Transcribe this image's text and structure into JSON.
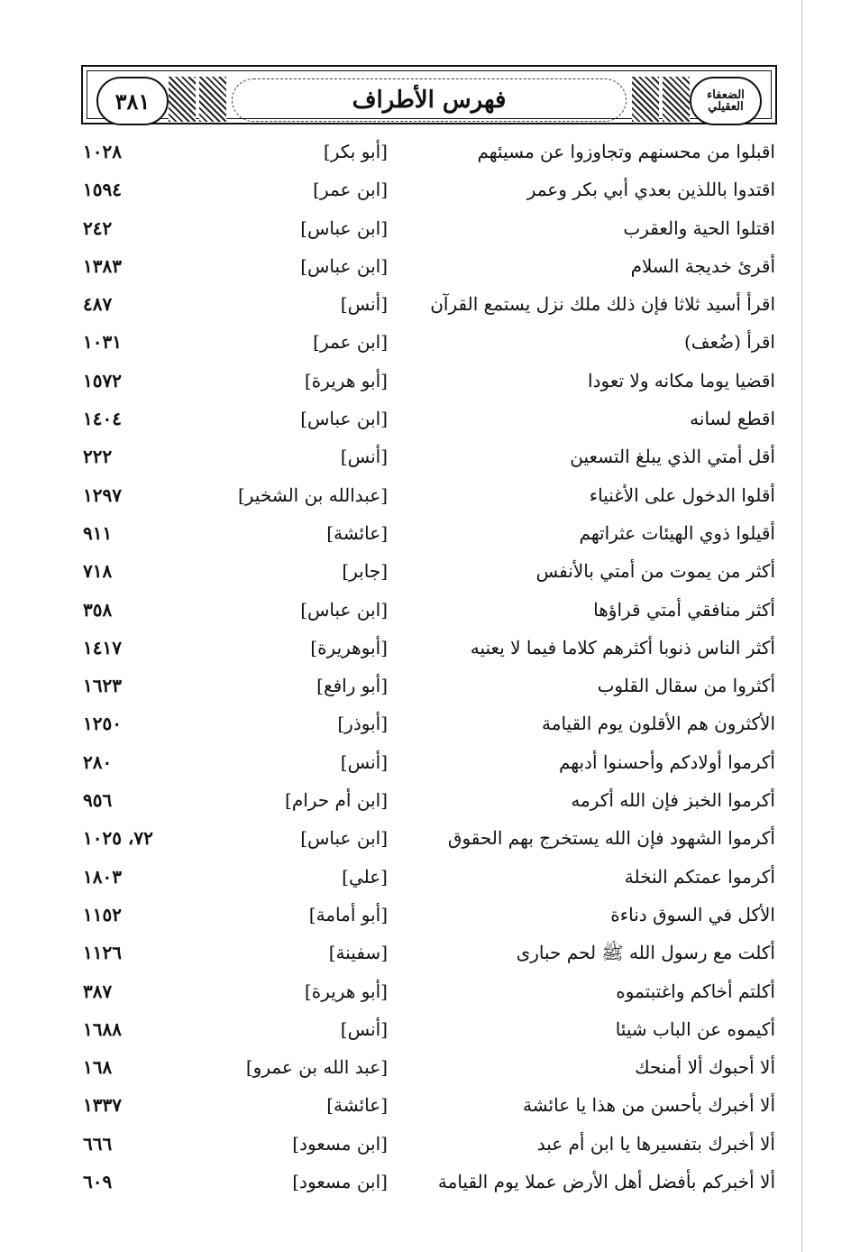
{
  "header": {
    "page_number": "٣٨١",
    "title": "فهرس الأطراف",
    "logo_text": "الضعفاء العقيلي"
  },
  "entries": [
    {
      "text": "اقبلوا من محسنهم وتجاوزوا عن مسيئهم",
      "narrator": "[أبو بكر]",
      "ref": "١٠٢٨"
    },
    {
      "text": "اقتدوا باللذين بعدي أبي بكر وعمر",
      "narrator": "[ابن عمر]",
      "ref": "١٥٩٤"
    },
    {
      "text": "اقتلوا الحية والعقرب",
      "narrator": "[ابن عباس]",
      "ref": "٢٤٢"
    },
    {
      "text": "أقرئ خديجة السلام",
      "narrator": "[ابن عباس]",
      "ref": "١٣٨٣"
    },
    {
      "text": "اقرأ أسيد ثلاثا فإن ذلك ملك نزل يستمع القرآن",
      "narrator": "[أنس]",
      "ref": "٤٨٧"
    },
    {
      "text": "اقرأ (ضُعف)",
      "narrator": "[ابن عمر]",
      "ref": "١٠٣١"
    },
    {
      "text": "اقضيا يوما مكانه ولا تعودا",
      "narrator": "[أبو هريرة]",
      "ref": "١٥٧٢"
    },
    {
      "text": "اقطع لسانه",
      "narrator": "[ابن عباس]",
      "ref": "١٤٠٤"
    },
    {
      "text": "أقل أمتي الذي يبلغ التسعين",
      "narrator": "[أنس]",
      "ref": "٢٢٢"
    },
    {
      "text": "أقلوا الدخول على الأغنياء",
      "narrator": "[عبدالله بن الشخير]",
      "ref": "١٢٩٧"
    },
    {
      "text": "أقيلوا ذوي الهيئات عثراتهم",
      "narrator": "[عائشة]",
      "ref": "٩١١"
    },
    {
      "text": "أكثر من يموت من أمتي بالأنفس",
      "narrator": "[جابر]",
      "ref": "٧١٨"
    },
    {
      "text": "أكثر منافقي أمتي قراؤها",
      "narrator": "[ابن عباس]",
      "ref": "٣٥٨"
    },
    {
      "text": "أكثر الناس ذنوبا أكثرهم كلاما فيما لا يعنيه",
      "narrator": "[أبوهريرة]",
      "ref": "١٤١٧"
    },
    {
      "text": "أكثروا من سقال القلوب",
      "narrator": "[أبو رافع]",
      "ref": "١٦٢٣"
    },
    {
      "text": "الأكثرون هم الأقلون يوم القيامة",
      "narrator": "[أبوذر]",
      "ref": "١٢٥٠"
    },
    {
      "text": "أكرموا أولادكم وأحسنوا أدبهم",
      "narrator": "[أنس]",
      "ref": "٢٨٠"
    },
    {
      "text": "أكرموا الخبز فإن الله أكرمه",
      "narrator": "[ابن أم حرام]",
      "ref": "٩٥٦"
    },
    {
      "text": "أكرموا الشهود فإن الله يستخرج بهم الحقوق",
      "narrator": "[ابن عباس]",
      "ref": "٧٢، ١٠٢٥"
    },
    {
      "text": "أكرموا عمتكم النخلة",
      "narrator": "[علي]",
      "ref": "١٨٠٣"
    },
    {
      "text": "الأكل في السوق دناءة",
      "narrator": "[أبو أمامة]",
      "ref": "١١٥٢"
    },
    {
      "text": "أكلت مع رسول الله ﷺ لحم حبارى",
      "narrator": "[سفينة]",
      "ref": "١١٢٦"
    },
    {
      "text": "أكلتم أخاكم واغتبتموه",
      "narrator": "[أبو هريرة]",
      "ref": "٣٨٧"
    },
    {
      "text": "أكيموه عن الباب شيئا",
      "narrator": "[أنس]",
      "ref": "١٦٨٨"
    },
    {
      "text": "ألا أحبوك ألا أمنحك",
      "narrator": "[عبد الله بن عمرو]",
      "ref": "١٦٨"
    },
    {
      "text": "ألا أخبرك بأحسن من هذا يا عائشة",
      "narrator": "[عائشة]",
      "ref": "١٣٣٧"
    },
    {
      "text": "ألا أخبرك بتفسيرها يا ابن أم عبد",
      "narrator": "[ابن مسعود]",
      "ref": "٦٦٦"
    },
    {
      "text": "ألا أخبركم بأفضل أهل الأرض عملا يوم القيامة",
      "narrator": "[ابن مسعود]",
      "ref": "٦٠٩"
    }
  ]
}
